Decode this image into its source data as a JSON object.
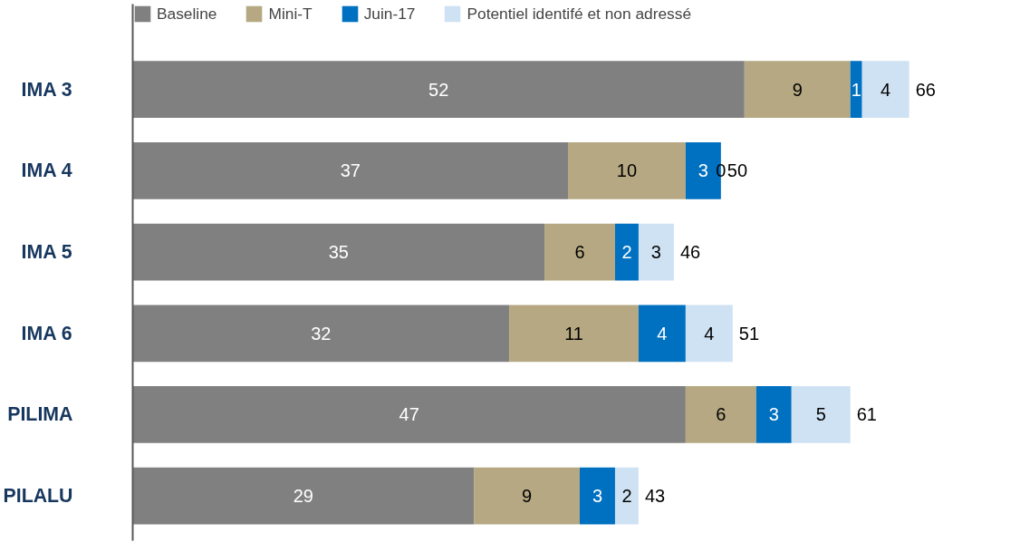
{
  "chart_data": {
    "type": "bar",
    "orientation": "horizontal",
    "stacked": true,
    "data_labels": true,
    "legend": "top left",
    "grid": false,
    "categories": [
      "IMA 3",
      "IMA 4",
      "IMA 5",
      "IMA 6",
      "PILIMA",
      "PILALU"
    ],
    "series": [
      {
        "name": "Baseline",
        "color": "#808080",
        "values": [
          52,
          37,
          35,
          32,
          47,
          29
        ]
      },
      {
        "name": "Mini-T",
        "color": "#b5a882",
        "values": [
          9,
          10,
          6,
          11,
          6,
          9
        ]
      },
      {
        "name": "Juin-17",
        "color": "#0070c0",
        "values": [
          1,
          3,
          2,
          4,
          3,
          3
        ]
      },
      {
        "name": "Potentiel identifé et non adressé",
        "color": "#cfe2f3",
        "values": [
          4,
          0,
          3,
          4,
          5,
          2
        ]
      }
    ],
    "totals": [
      "66",
      "50",
      "46",
      "51",
      "61",
      "43"
    ]
  }
}
